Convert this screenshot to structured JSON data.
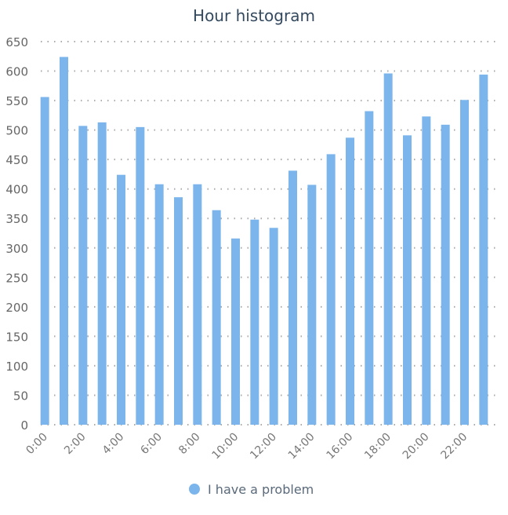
{
  "chart_data": {
    "type": "bar",
    "title": "Hour histogram",
    "xlabel": "",
    "ylabel": "",
    "categories": [
      "0:00",
      "1:00",
      "2:00",
      "3:00",
      "4:00",
      "5:00",
      "6:00",
      "7:00",
      "8:00",
      "9:00",
      "10:00",
      "11:00",
      "12:00",
      "13:00",
      "14:00",
      "15:00",
      "16:00",
      "17:00",
      "18:00",
      "19:00",
      "20:00",
      "21:00",
      "22:00",
      "23:00"
    ],
    "tick_labels": [
      "0:00",
      "2:00",
      "4:00",
      "6:00",
      "8:00",
      "10:00",
      "12:00",
      "14:00",
      "16:00",
      "18:00",
      "20:00",
      "22:00"
    ],
    "series": [
      {
        "name": "I have a problem",
        "color": "#7cb5ec",
        "values": [
          556,
          624,
          507,
          513,
          424,
          505,
          408,
          386,
          408,
          364,
          316,
          348,
          334,
          431,
          407,
          459,
          487,
          532,
          596,
          491,
          523,
          509,
          551,
          594
        ]
      }
    ],
    "ylim": [
      0,
      650
    ],
    "yticks": [
      0,
      50,
      100,
      150,
      200,
      250,
      300,
      350,
      400,
      450,
      500,
      550,
      600,
      650
    ],
    "grid": "horizontal dotted",
    "legend": "bottom-center"
  }
}
